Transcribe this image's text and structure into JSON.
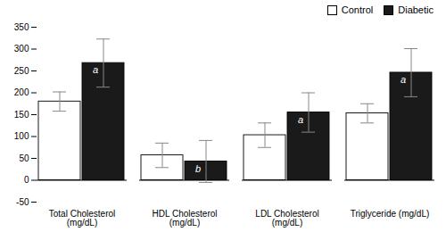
{
  "chart_data": {
    "type": "bar",
    "categories": [
      "Total Cholesterol\n(mg/dL)",
      "HDL Cholesterol\n(mg/dL)",
      "LDL Cholesterol\n(mg/dL)",
      "Triglyceride (mg/dL)"
    ],
    "series": [
      {
        "name": "Control",
        "color": "#ffffff",
        "values": [
          180,
          57,
          103,
          153
        ],
        "errors": [
          22,
          28,
          28,
          22
        ]
      },
      {
        "name": "Diabetic",
        "color": "#1a1a1a",
        "values": [
          268,
          43,
          155,
          246
        ],
        "errors": [
          55,
          48,
          45,
          55
        ],
        "labels": [
          "a",
          "b",
          "a",
          "a"
        ]
      }
    ],
    "ylim": [
      -50,
      350
    ],
    "yticks": [
      -50,
      0,
      50,
      100,
      150,
      200,
      250,
      300,
      350
    ],
    "grid": false,
    "legend": "upper right"
  }
}
